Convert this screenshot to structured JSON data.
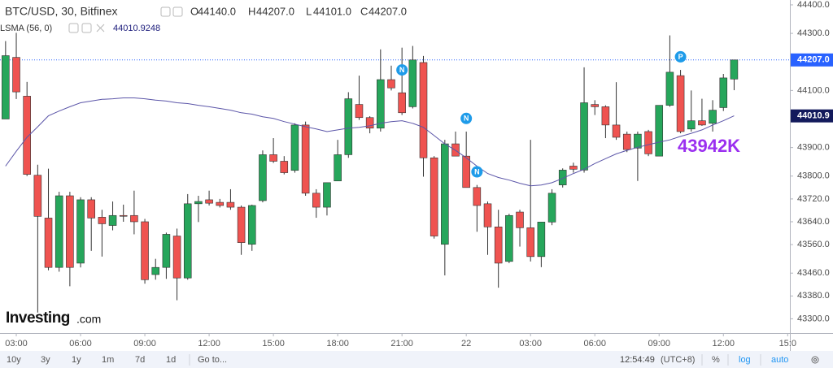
{
  "chart_data": {
    "type": "candlestick",
    "title": "BTC/USD, 30, Bitfinex",
    "ohlc_legend": [
      {
        "label": "O",
        "value": "44140.0"
      },
      {
        "label": "H",
        "value": "44207.0"
      },
      {
        "label": "L",
        "value": "44101.0"
      },
      {
        "label": "C",
        "value": "44207.0"
      }
    ],
    "up_color": "#26a65b",
    "down_color": "#ef5350",
    "open": [
      44000,
      44216,
      44080,
      43803,
      43653,
      43480,
      43731,
      43495,
      43717,
      43656,
      43627,
      43662,
      43662,
      43640,
      43455,
      43480,
      43590,
      43443,
      43703,
      43717,
      43708,
      43708,
      43691,
      43561,
      43714,
      43875,
      43852,
      43820,
      43979,
      43740,
      43691,
      43783,
      43875,
      44051,
      44005,
      43968,
      44138,
      44092,
      44043,
      44198,
      43864,
      43561,
      43913,
      43870,
      43760,
      43703,
      43622,
      43501,
      43674,
      43619,
      43518,
      43639,
      43769,
      43835,
      43821,
      44051,
      44043,
      43979,
      43947,
      43898,
      43956,
      43870,
      44048,
      44152,
      43965,
      43994,
      43985,
      44040,
      44140
    ],
    "high": [
      44273,
      44302,
      44130,
      43840,
      43826,
      43745,
      43745,
      43726,
      43726,
      43682,
      43711,
      43700,
      43749,
      43650,
      43510,
      43602,
      43616,
      43737,
      43731,
      43749,
      43720,
      43754,
      43697,
      43700,
      43890,
      43933,
      43870,
      43985,
      43991,
      43754,
      43777,
      43927,
      44094,
      44152,
      44010,
      44244,
      44187,
      44250,
      44256,
      44221,
      43870,
      43927,
      43956,
      43956,
      43769,
      43711,
      43682,
      43668,
      43682,
      43927,
      43639,
      43754,
      43827,
      43847,
      44181,
      44066,
      44048,
      44129,
      43956,
      43956,
      43962,
      44048,
      44293,
      44172,
      44100,
      44071,
      44066,
      44158,
      44207
    ],
    "low": [
      44000,
      44070,
      43800,
      43322,
      43470,
      43465,
      43414,
      43480,
      43538,
      43518,
      43610,
      43640,
      43596,
      43423,
      43437,
      43440,
      43365,
      43437,
      43639,
      43697,
      43690,
      43682,
      43524,
      43538,
      43708,
      43846,
      43806,
      43812,
      43731,
      43654,
      43662,
      43783,
      43864,
      43997,
      43950,
      43956,
      44100,
      44014,
      44037,
      43798,
      43581,
      43452,
      43870,
      43760,
      43605,
      43524,
      43409,
      43495,
      43553,
      43501,
      43481,
      43628,
      43760,
      43812,
      43812,
      44014,
      43933,
      43927,
      43884,
      43783,
      43870,
      43870,
      44043,
      43950,
      43956,
      43976,
      43956,
      44028,
      44101
    ],
    "close": [
      44222,
      44095,
      43806,
      43659,
      43480,
      43731,
      43480,
      43717,
      43653,
      43633,
      43662,
      43660,
      43640,
      43437,
      43480,
      43596,
      43443,
      43703,
      43711,
      43705,
      43697,
      43691,
      43567,
      43697,
      43875,
      43852,
      43812,
      43979,
      43740,
      43691,
      43777,
      43875,
      44071,
      44005,
      43968,
      44138,
      44109,
      44022,
      44207,
      43864,
      43590,
      43913,
      43870,
      43760,
      43697,
      43622,
      43495,
      43662,
      43619,
      43518,
      43639,
      43740,
      43821,
      43824,
      44057,
      44043,
      43979,
      43936,
      43893,
      43947,
      43878,
      44048,
      44164,
      43956,
      43994,
      43979,
      44031,
      44144,
      44207
    ],
    "line_series": {
      "name": "LSMA (56, 0)",
      "value_label": "44010.9248",
      "color": "#5b55a8",
      "values": [
        43835,
        43887,
        43936,
        43973,
        44011,
        44028,
        44043,
        44057,
        44063,
        44069,
        44071,
        44074,
        44074,
        44071,
        44066,
        44063,
        44057,
        44054,
        44048,
        44043,
        44037,
        44031,
        44022,
        44017,
        44008,
        44002,
        43991,
        43982,
        43973,
        43965,
        43956,
        43962,
        43968,
        43971,
        43976,
        43985,
        43991,
        43994,
        43985,
        43971,
        43942,
        43913,
        43890,
        43864,
        43835,
        43809,
        43795,
        43786,
        43775,
        43766,
        43769,
        43777,
        43792,
        43809,
        43824,
        43844,
        43861,
        43878,
        43890,
        43901,
        43910,
        43919,
        43927,
        43939,
        43950,
        43962,
        43979,
        43994,
        44011
      ]
    },
    "ylim": [
      43250,
      44417
    ],
    "yticks": [
      {
        "value": 44400,
        "label": "44400.0"
      },
      {
        "value": 44300,
        "label": "44300.0"
      },
      {
        "value": 44100,
        "label": "44100.0"
      },
      {
        "value": 43900,
        "label": "43900.0"
      },
      {
        "value": 43800,
        "label": "43800.0"
      },
      {
        "value": 43720,
        "label": "43720.0"
      },
      {
        "value": 43640,
        "label": "43640.0"
      },
      {
        "value": 43560,
        "label": "43560.0"
      },
      {
        "value": 43460,
        "label": "43460.0"
      },
      {
        "value": 43380,
        "label": "43380.0"
      },
      {
        "value": 43300,
        "label": "43300.0"
      }
    ],
    "xlim": [
      -0.52,
      73.13
    ],
    "xticks": [
      {
        "value": 1,
        "label": "03:00"
      },
      {
        "value": 7,
        "label": "06:00"
      },
      {
        "value": 13,
        "label": "09:00"
      },
      {
        "value": 19,
        "label": "12:00"
      },
      {
        "value": 25,
        "label": "15:00"
      },
      {
        "value": 31,
        "label": "18:00"
      },
      {
        "value": 37,
        "label": "21:00"
      },
      {
        "value": 43,
        "label": "22"
      },
      {
        "value": 49,
        "label": "03:00"
      },
      {
        "value": 55,
        "label": "06:00"
      },
      {
        "value": 61,
        "label": "09:00"
      },
      {
        "value": 67,
        "label": "12:00"
      },
      {
        "value": 73,
        "label": "15:0"
      }
    ],
    "last_price": {
      "value": 44207,
      "label": "44207.0",
      "color": "#2962ff"
    },
    "indicator_price": {
      "value": 44010.9,
      "label": "44010.9",
      "color": "#131a5c"
    },
    "markers": [
      {
        "label": "N",
        "index": 37,
        "value": 44172
      },
      {
        "label": "N",
        "index": 43,
        "value": 44002
      },
      {
        "label": "N",
        "index": 44,
        "value": 43815
      },
      {
        "label": "P",
        "index": 63,
        "value": 44218
      }
    ],
    "annotation": {
      "text": "43942K",
      "color": "#9b30f0"
    },
    "brand": {
      "name": "Investing",
      "suffix": ".com"
    },
    "toolbar": {
      "ranges": [
        "10y",
        "3y",
        "1y",
        "1m",
        "7d",
        "1d"
      ],
      "goto": "Go to...",
      "time": "12:54:49",
      "timezone": "(UTC+8)",
      "percent": "%",
      "log": "log",
      "auto": "auto"
    }
  }
}
